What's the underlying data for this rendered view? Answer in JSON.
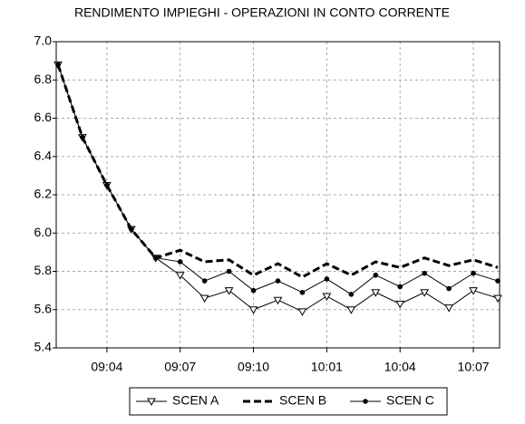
{
  "chart_data": {
    "type": "line",
    "title": "RENDIMENTO IMPIEGHI - OPERAZIONI IN CONTO CORRENTE",
    "categories": [
      null,
      null,
      "09:04",
      null,
      null,
      "09:07",
      null,
      null,
      "09:10",
      null,
      null,
      "10:01",
      null,
      null,
      "10:04",
      null,
      null,
      "10:07",
      null
    ],
    "series": [
      {
        "name": "SCEN A",
        "color": "#000000",
        "marker": "triangle-down",
        "dash": "solid",
        "values": [
          6.88,
          6.5,
          6.25,
          6.02,
          5.87,
          5.78,
          5.66,
          5.7,
          5.6,
          5.65,
          5.59,
          5.67,
          5.6,
          5.69,
          5.63,
          5.69,
          5.61,
          5.7,
          5.66
        ]
      },
      {
        "name": "SCEN B",
        "color": "#000000",
        "marker": "none",
        "dash": "dashed",
        "values": [
          6.88,
          6.5,
          6.25,
          6.02,
          5.87,
          5.91,
          5.85,
          5.86,
          5.78,
          5.84,
          5.77,
          5.84,
          5.78,
          5.85,
          5.82,
          5.87,
          5.83,
          5.86,
          5.82
        ]
      },
      {
        "name": "SCEN C",
        "color": "#000000",
        "marker": "dot",
        "dash": "solid",
        "values": [
          6.88,
          6.5,
          6.25,
          6.02,
          5.87,
          5.85,
          5.75,
          5.8,
          5.7,
          5.75,
          5.69,
          5.76,
          5.68,
          5.78,
          5.72,
          5.79,
          5.71,
          5.79,
          5.75
        ]
      }
    ],
    "ylim": [
      5.4,
      7.0
    ],
    "yticks": [
      {
        "value": 5.4,
        "label": "5.4"
      },
      {
        "value": 5.6,
        "label": "5.6"
      },
      {
        "value": 5.8,
        "label": "5.8"
      },
      {
        "value": 6.0,
        "label": "6.0"
      },
      {
        "value": 6.2,
        "label": "6.2"
      },
      {
        "value": 6.4,
        "label": "6.4"
      },
      {
        "value": 6.6,
        "label": "6.6"
      },
      {
        "value": 6.8,
        "label": "6.8"
      },
      {
        "value": 7.0,
        "label": "7.0"
      }
    ],
    "grid": true
  }
}
